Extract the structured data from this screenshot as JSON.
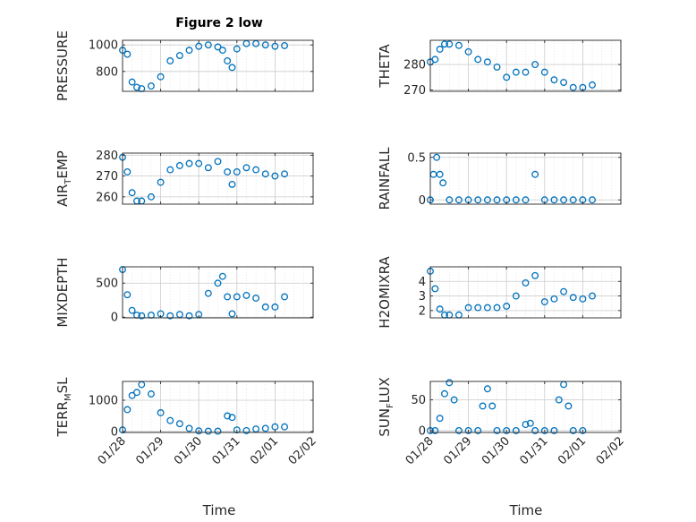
{
  "figure": {
    "title": "Figure 2 low",
    "x_label": "Time",
    "x_tick_labels": [
      "01/28",
      "01/29",
      "01/30",
      "01/31",
      "02/01",
      "02/02"
    ]
  },
  "chart_data": [
    {
      "type": "scatter",
      "ylabel": "PRESSURE",
      "xlim": [
        "01/28",
        "02/02"
      ],
      "ylim": [
        650,
        1035
      ],
      "yticks": [
        800,
        1000
      ],
      "grid": true,
      "x": [
        "01/28 00:00",
        "01/28 03:00",
        "01/28 06:00",
        "01/28 09:00",
        "01/28 12:00",
        "01/28 18:00",
        "01/29 00:00",
        "01/29 06:00",
        "01/29 12:00",
        "01/29 18:00",
        "01/30 00:00",
        "01/30 06:00",
        "01/30 12:00",
        "01/30 15:00",
        "01/30 18:00",
        "01/30 21:00",
        "01/31 00:00",
        "01/31 06:00",
        "01/31 12:00",
        "01/31 18:00",
        "02/01 00:00",
        "02/01 06:00"
      ],
      "y": [
        960,
        930,
        720,
        680,
        670,
        690,
        760,
        880,
        920,
        960,
        990,
        1000,
        985,
        960,
        880,
        830,
        970,
        1010,
        1010,
        1000,
        990,
        995
      ]
    },
    {
      "type": "scatter",
      "ylabel": "THETA",
      "xlim": [
        "01/28",
        "02/02"
      ],
      "ylim": [
        269.5,
        289.5
      ],
      "yticks": [
        270,
        280
      ],
      "grid": true,
      "x": [
        "01/28 00:00",
        "01/28 03:00",
        "01/28 06:00",
        "01/28 09:00",
        "01/28 12:00",
        "01/28 18:00",
        "01/29 00:00",
        "01/29 06:00",
        "01/29 12:00",
        "01/29 18:00",
        "01/30 00:00",
        "01/30 06:00",
        "01/30 12:00",
        "01/30 18:00",
        "01/31 00:00",
        "01/31 06:00",
        "01/31 12:00",
        "01/31 18:00",
        "02/01 00:00",
        "02/01 06:00"
      ],
      "y": [
        281,
        282,
        286,
        288,
        288,
        287.5,
        285,
        282,
        281,
        279,
        275,
        277,
        277,
        280,
        277,
        274,
        273,
        271,
        271,
        272
      ]
    },
    {
      "type": "scatter",
      "ylabel": "AIR_TEMP",
      "xlim": [
        "01/28",
        "02/02"
      ],
      "ylim": [
        256.5,
        281
      ],
      "yticks": [
        260,
        270,
        280
      ],
      "grid": true,
      "x": [
        "01/28 00:00",
        "01/28 03:00",
        "01/28 06:00",
        "01/28 09:00",
        "01/28 12:00",
        "01/28 18:00",
        "01/29 00:00",
        "01/29 06:00",
        "01/29 12:00",
        "01/29 18:00",
        "01/30 00:00",
        "01/30 06:00",
        "01/30 12:00",
        "01/30 18:00",
        "01/30 21:00",
        "01/31 00:00",
        "01/31 06:00",
        "01/31 12:00",
        "01/31 18:00",
        "02/01 00:00",
        "02/01 06:00"
      ],
      "y": [
        279,
        272,
        262,
        258,
        258,
        260,
        267,
        273,
        275,
        276,
        276,
        274,
        277,
        272,
        266,
        272,
        274,
        273,
        271,
        270,
        271
      ]
    },
    {
      "type": "scatter",
      "ylabel": "RAINFALL",
      "xlim": [
        "01/28",
        "02/02"
      ],
      "ylim": [
        -0.05,
        0.55
      ],
      "yticks": [
        0,
        0.5
      ],
      "grid": true,
      "x": [
        "01/28 00:00",
        "01/28 02:00",
        "01/28 04:00",
        "01/28 06:00",
        "01/28 08:00",
        "01/28 12:00",
        "01/28 18:00",
        "01/29 00:00",
        "01/29 06:00",
        "01/29 12:00",
        "01/29 18:00",
        "01/30 00:00",
        "01/30 06:00",
        "01/30 12:00",
        "01/30 18:00",
        "01/31 00:00",
        "01/31 06:00",
        "01/31 12:00",
        "01/31 18:00",
        "02/01 00:00",
        "02/01 06:00"
      ],
      "y": [
        0,
        0.3,
        0.5,
        0.3,
        0.2,
        0,
        0,
        0,
        0,
        0,
        0,
        0,
        0,
        0,
        0.3,
        0,
        0,
        0,
        0,
        0,
        0
      ]
    },
    {
      "type": "scatter",
      "ylabel": "MIXDEPTH",
      "xlim": [
        "01/28",
        "02/02"
      ],
      "ylim": [
        -10,
        740
      ],
      "yticks": [
        0,
        500
      ],
      "grid": true,
      "x": [
        "01/28 00:00",
        "01/28 03:00",
        "01/28 06:00",
        "01/28 09:00",
        "01/28 12:00",
        "01/28 18:00",
        "01/29 00:00",
        "01/29 06:00",
        "01/29 12:00",
        "01/29 18:00",
        "01/30 00:00",
        "01/30 06:00",
        "01/30 12:00",
        "01/30 15:00",
        "01/30 18:00",
        "01/30 21:00",
        "01/31 00:00",
        "01/31 06:00",
        "01/31 12:00",
        "01/31 18:00",
        "02/01 00:00",
        "02/01 06:00"
      ],
      "y": [
        700,
        330,
        100,
        30,
        20,
        30,
        50,
        20,
        40,
        20,
        40,
        350,
        500,
        600,
        300,
        50,
        300,
        320,
        280,
        150,
        150,
        300
      ]
    },
    {
      "type": "scatter",
      "ylabel": "H2OMIXRA",
      "xlim": [
        "01/28",
        "02/02"
      ],
      "ylim": [
        1.5,
        5
      ],
      "yticks": [
        2,
        3,
        4
      ],
      "grid": true,
      "x": [
        "01/28 00:00",
        "01/28 03:00",
        "01/28 06:00",
        "01/28 09:00",
        "01/28 12:00",
        "01/28 18:00",
        "01/29 00:00",
        "01/29 06:00",
        "01/29 12:00",
        "01/29 18:00",
        "01/30 00:00",
        "01/30 06:00",
        "01/30 12:00",
        "01/30 18:00",
        "01/31 00:00",
        "01/31 06:00",
        "01/31 12:00",
        "01/31 18:00",
        "02/01 00:00",
        "02/01 06:00"
      ],
      "y": [
        4.7,
        3.5,
        2.1,
        1.7,
        1.7,
        1.7,
        2.2,
        2.2,
        2.2,
        2.2,
        2.3,
        3.0,
        3.9,
        4.4,
        2.6,
        2.8,
        3.3,
        2.9,
        2.8,
        3.0
      ]
    },
    {
      "type": "scatter",
      "ylabel": "TERR_MSL",
      "xlim": [
        "01/28",
        "02/02"
      ],
      "ylim": [
        -30,
        1600
      ],
      "yticks": [
        0,
        1000
      ],
      "grid": true,
      "x": [
        "01/28 00:00",
        "01/28 03:00",
        "01/28 06:00",
        "01/28 09:00",
        "01/28 12:00",
        "01/28 18:00",
        "01/29 00:00",
        "01/29 06:00",
        "01/29 12:00",
        "01/29 18:00",
        "01/30 00:00",
        "01/30 06:00",
        "01/30 12:00",
        "01/30 18:00",
        "01/30 21:00",
        "01/31 00:00",
        "01/31 06:00",
        "01/31 12:00",
        "01/31 18:00",
        "02/01 00:00",
        "02/01 06:00"
      ],
      "y": [
        50,
        700,
        1150,
        1250,
        1500,
        1200,
        600,
        350,
        250,
        100,
        20,
        10,
        10,
        500,
        450,
        50,
        30,
        80,
        100,
        150,
        150
      ]
    },
    {
      "type": "scatter",
      "ylabel": "SUN_FLUX",
      "xlim": [
        "01/28",
        "02/02"
      ],
      "ylim": [
        -3,
        80
      ],
      "yticks": [
        0,
        50
      ],
      "grid": true,
      "x": [
        "01/28 00:00",
        "01/28 03:00",
        "01/28 06:00",
        "01/28 09:00",
        "01/28 12:00",
        "01/28 15:00",
        "01/28 18:00",
        "01/29 00:00",
        "01/29 06:00",
        "01/29 09:00",
        "01/29 12:00",
        "01/29 15:00",
        "01/29 18:00",
        "01/30 00:00",
        "01/30 06:00",
        "01/30 12:00",
        "01/30 15:00",
        "01/30 18:00",
        "01/31 00:00",
        "01/31 06:00",
        "01/31 09:00",
        "01/31 12:00",
        "01/31 15:00",
        "01/31 18:00",
        "02/01 00:00"
      ],
      "y": [
        0,
        0,
        20,
        60,
        78,
        50,
        0,
        0,
        0,
        40,
        68,
        40,
        0,
        0,
        0,
        10,
        12,
        0,
        0,
        0,
        50,
        75,
        40,
        0,
        0
      ]
    }
  ]
}
